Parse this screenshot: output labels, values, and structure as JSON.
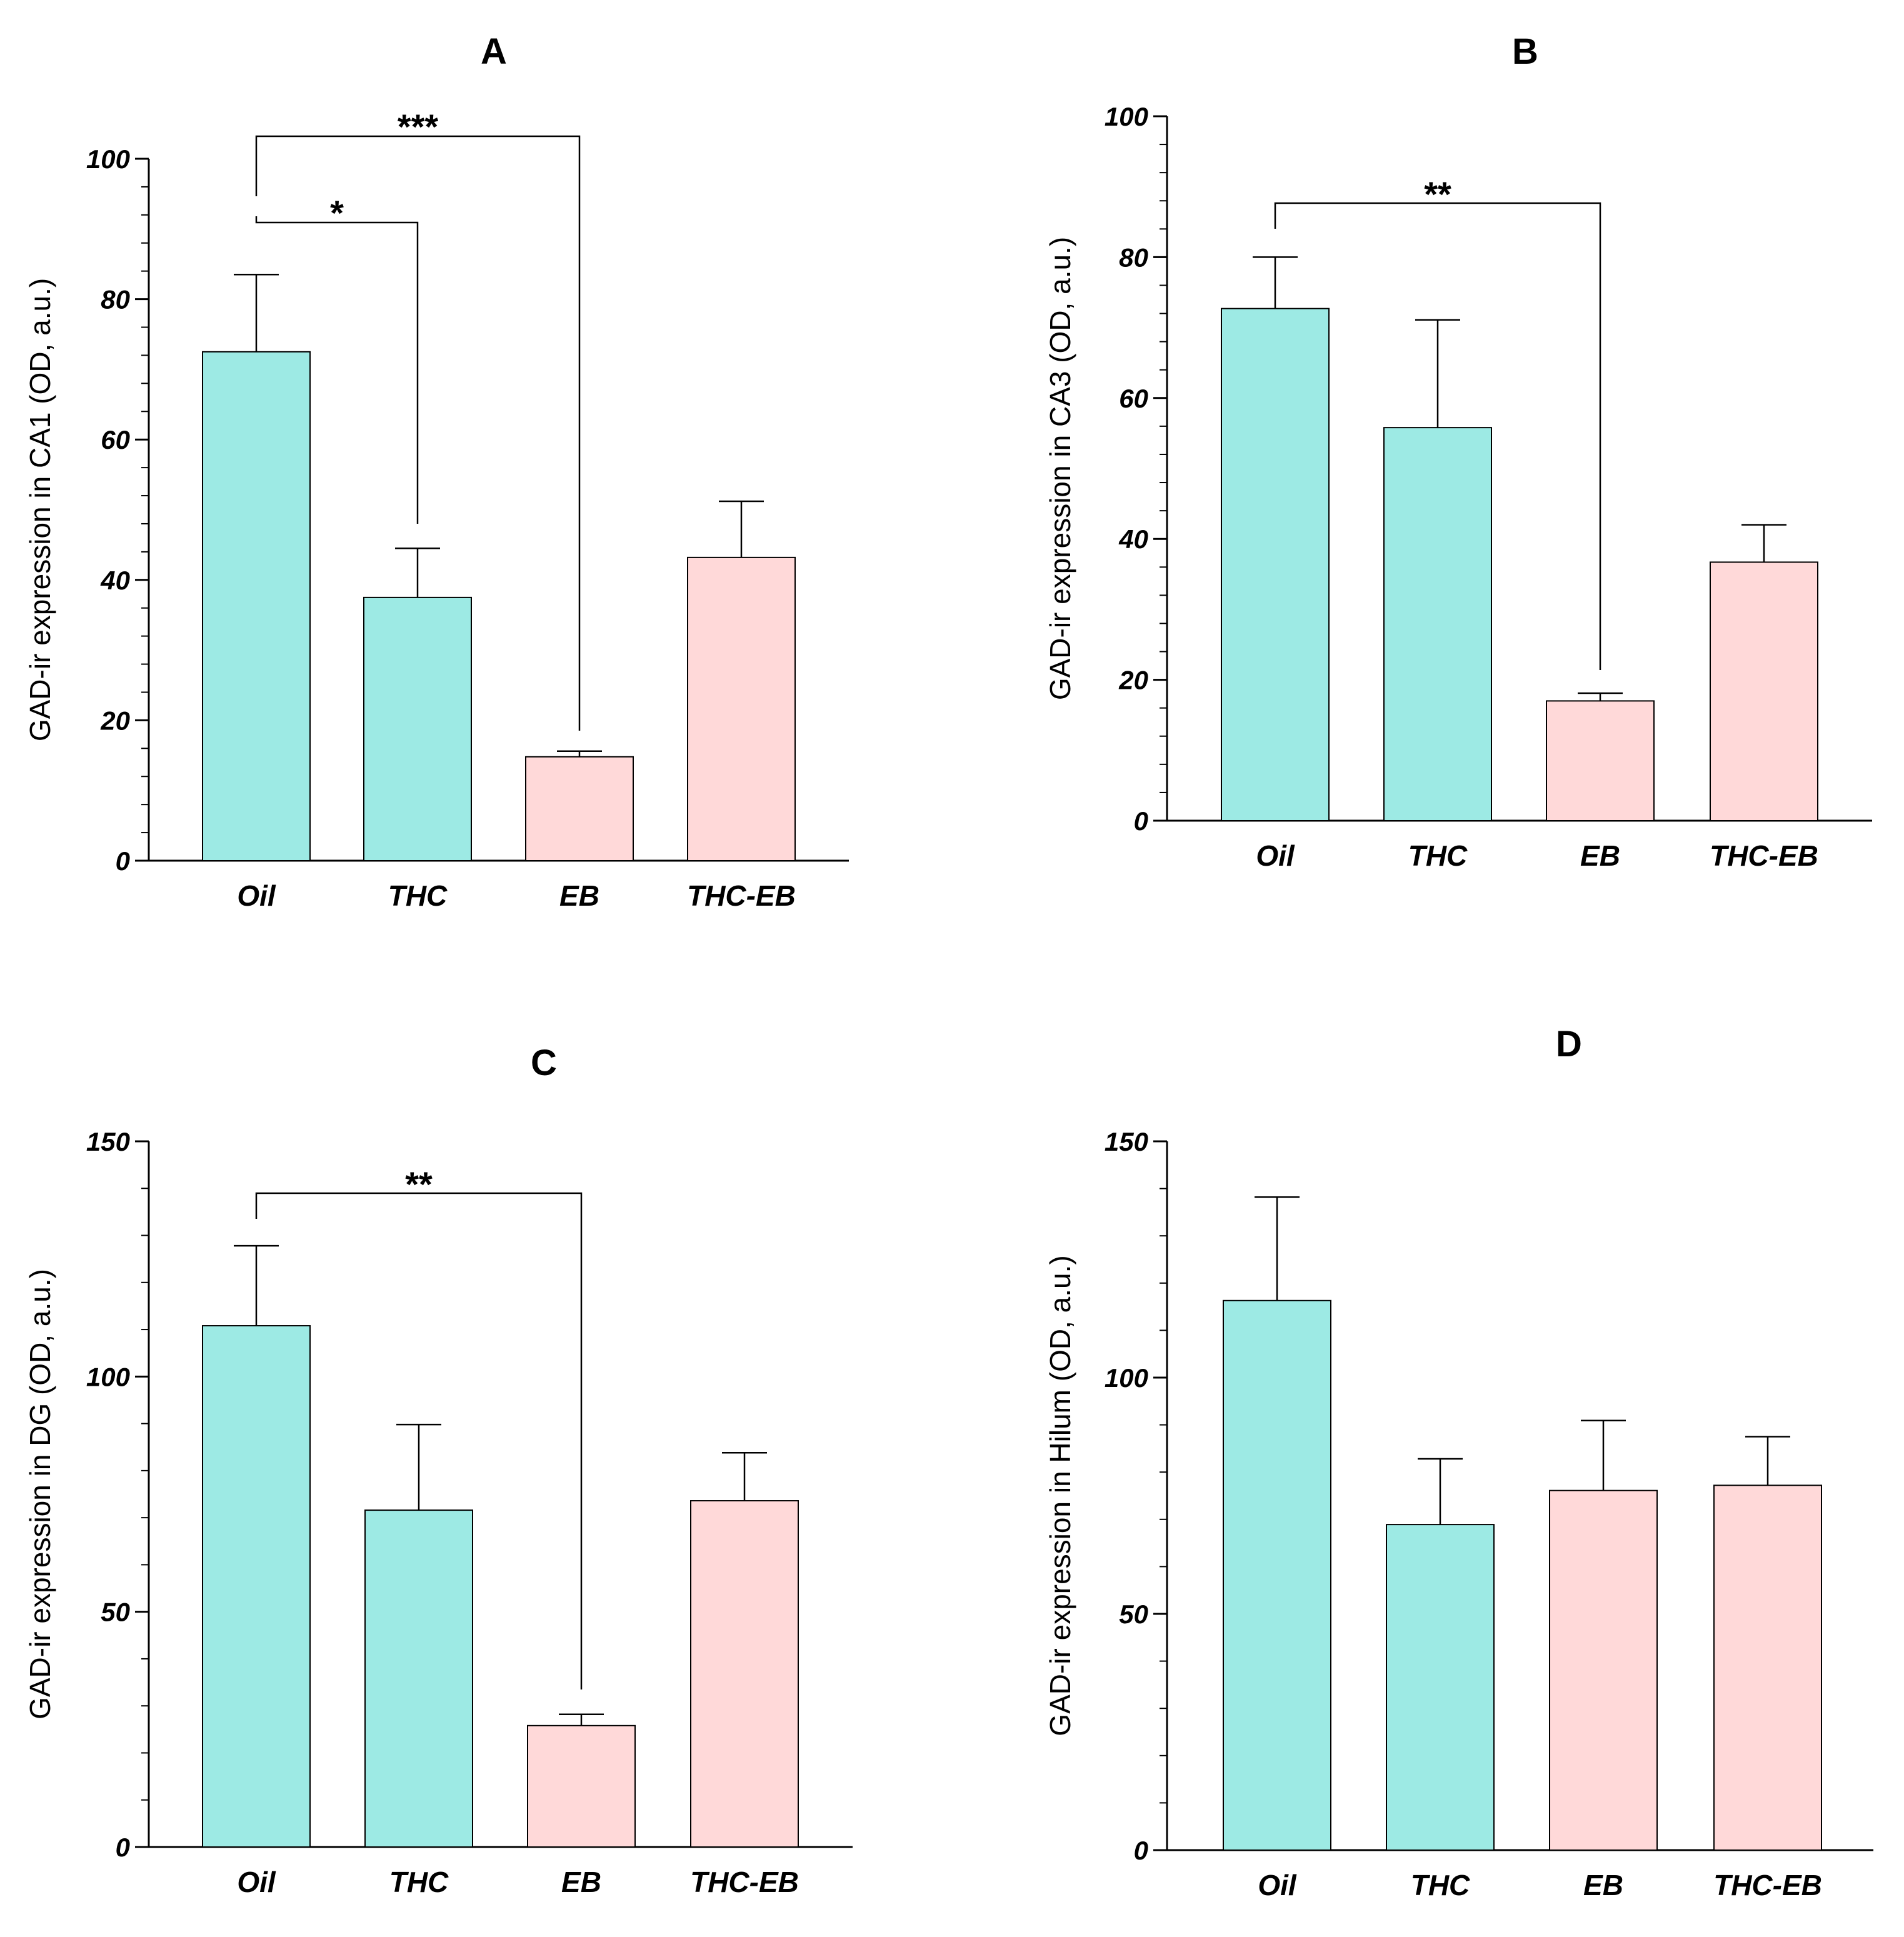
{
  "colors": {
    "control": "#9deae4",
    "eb": "#ffd9d9",
    "axis": "#000000"
  },
  "chart_data": [
    {
      "type": "bar",
      "title": "A",
      "ylabel": "GAD-ir expression in CA1 (OD, a.u.)",
      "xlabel": "",
      "ylim": [
        0,
        100
      ],
      "yticks": [
        0,
        20,
        40,
        60,
        80,
        100
      ],
      "categories": [
        "Oil",
        "THC",
        "EB",
        "THC-EB"
      ],
      "values": [
        72.5,
        37.5,
        14.8,
        43.2
      ],
      "errors": [
        11,
        7,
        0.8,
        8
      ],
      "bar_colors": [
        "control",
        "control",
        "eb",
        "eb"
      ],
      "significance": [
        {
          "from": 0,
          "to": 1,
          "label": "*"
        },
        {
          "from": 0,
          "to": 2,
          "label": "***"
        }
      ]
    },
    {
      "type": "bar",
      "title": "B",
      "ylabel": "GAD-ir expression in CA3 (OD, a.u.)",
      "xlabel": "",
      "ylim": [
        0,
        100
      ],
      "yticks": [
        0,
        20,
        40,
        60,
        80,
        100
      ],
      "categories": [
        "Oil",
        "THC",
        "EB",
        "THC-EB"
      ],
      "values": [
        72.7,
        55.8,
        17,
        36.7
      ],
      "errors": [
        7.3,
        15.3,
        1.1,
        5.3
      ],
      "bar_colors": [
        "control",
        "control",
        "eb",
        "eb"
      ],
      "significance": [
        {
          "from": 0,
          "to": 2,
          "label": "**"
        }
      ]
    },
    {
      "type": "bar",
      "title": "C",
      "ylabel": "GAD-ir expression in DG (OD, a.u.)",
      "xlabel": "",
      "ylim": [
        0,
        150
      ],
      "yticks": [
        0,
        50,
        100,
        150
      ],
      "categories": [
        "Oil",
        "THC",
        "EB",
        "THC-EB"
      ],
      "values": [
        110.8,
        71.6,
        25.8,
        73.6
      ],
      "errors": [
        17,
        18.2,
        2.4,
        10.2
      ],
      "bar_colors": [
        "control",
        "control",
        "eb",
        "eb"
      ],
      "significance": [
        {
          "from": 0,
          "to": 2,
          "label": "**"
        }
      ]
    },
    {
      "type": "bar",
      "title": "D",
      "ylabel": "GAD-ir expression in Hilum (OD, a.u.)",
      "xlabel": "",
      "ylim": [
        0,
        150
      ],
      "yticks": [
        0,
        50,
        100,
        150
      ],
      "categories": [
        "Oil",
        "THC",
        "EB",
        "THC-EB"
      ],
      "values": [
        116.3,
        68.9,
        76.1,
        77.2
      ],
      "errors": [
        21.9,
        13.9,
        14.8,
        10.3
      ],
      "bar_colors": [
        "control",
        "control",
        "eb",
        "eb"
      ],
      "significance": []
    }
  ]
}
